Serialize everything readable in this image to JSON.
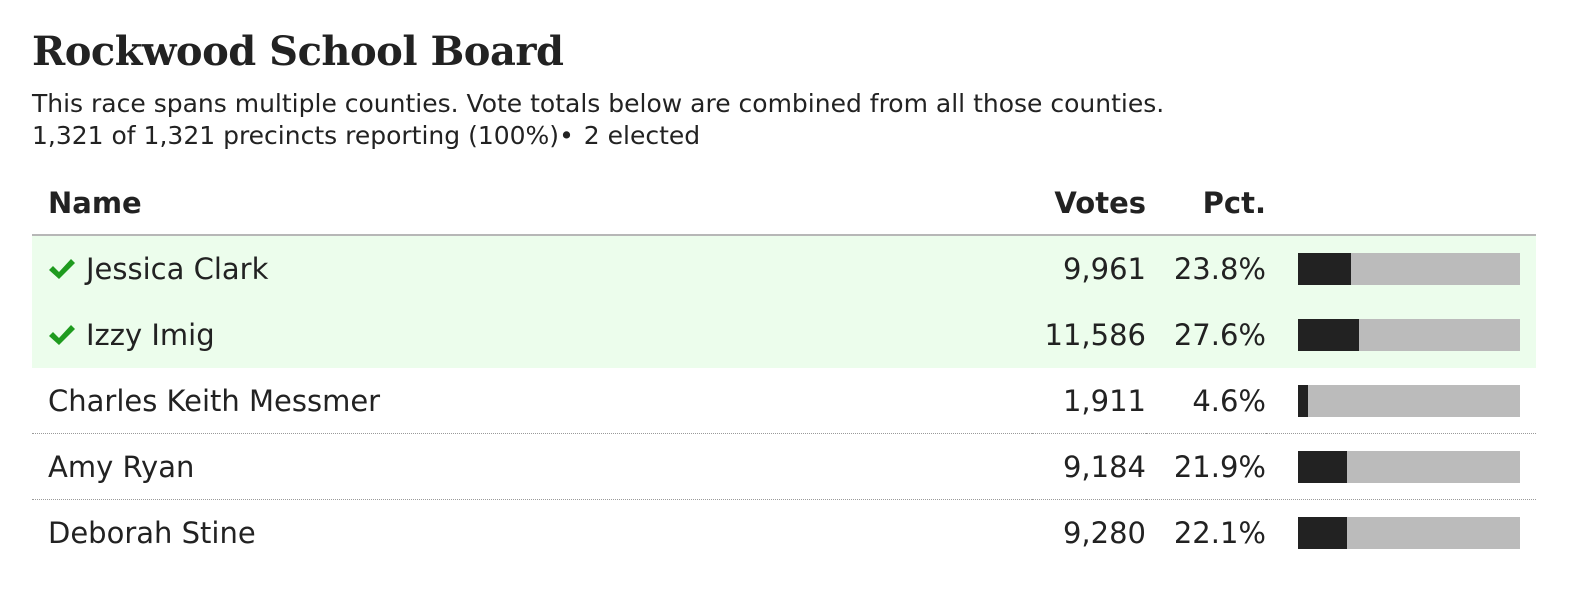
{
  "race": {
    "title": "Rockwood School Board",
    "note": "This race spans multiple counties. Vote totals below are combined from all those counties.",
    "reporting": "1,321 of 1,321 precincts reporting (100%)",
    "separator": "•",
    "elected": "2 elected"
  },
  "table": {
    "headers": {
      "name": "Name",
      "votes": "Votes",
      "pct": "Pct."
    },
    "rows": [
      {
        "name": "Jessica Clark",
        "votes": "9,961",
        "pct": "23.8%",
        "share": 23.8,
        "winner": true
      },
      {
        "name": "Izzy Imig",
        "votes": "11,586",
        "pct": "27.6%",
        "share": 27.6,
        "winner": true
      },
      {
        "name": "Charles Keith Messmer",
        "votes": "1,911",
        "pct": "4.6%",
        "share": 4.6,
        "winner": false
      },
      {
        "name": "Amy Ryan",
        "votes": "9,184",
        "pct": "21.9%",
        "share": 21.9,
        "winner": false
      },
      {
        "name": "Deborah Stine",
        "votes": "9,280",
        "pct": "22.1%",
        "share": 22.1,
        "winner": false
      }
    ]
  },
  "colors": {
    "winner_bg": "#ecfdec",
    "check": "#1f9b1f",
    "bar_fill": "#222222",
    "bar_track": "#bbbbbb"
  },
  "icons": {
    "winner": "check-icon"
  }
}
